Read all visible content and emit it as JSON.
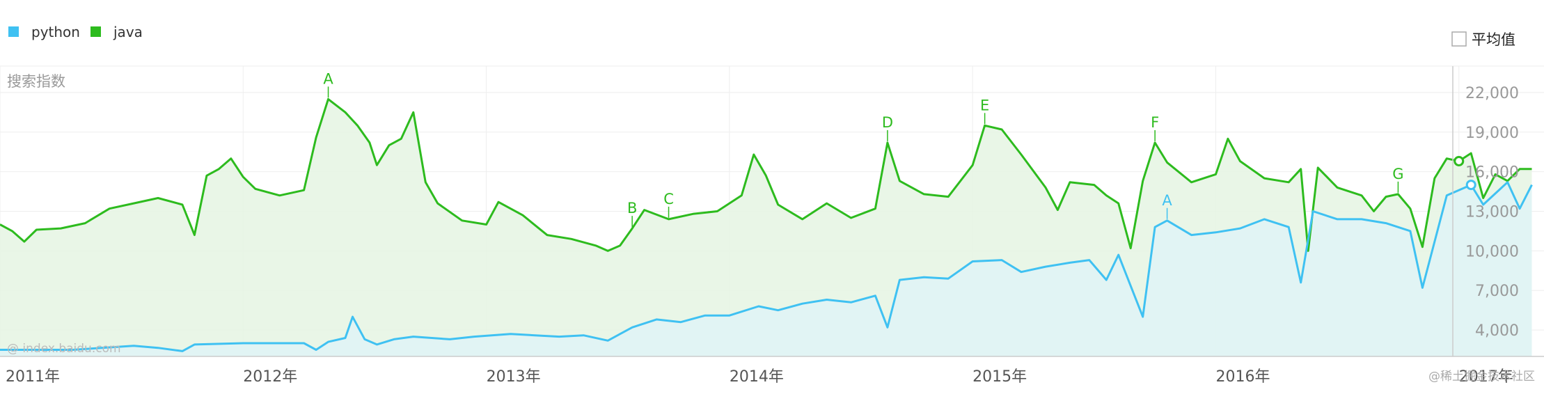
{
  "chart_data": {
    "type": "area",
    "ylabel": "搜索指数",
    "ylim": [
      2000,
      24000
    ],
    "y_ticks": [
      4000,
      7000,
      10000,
      13000,
      16000,
      19000,
      22000
    ],
    "x_ticks": [
      {
        "t": 2011.0,
        "label": "2011年"
      },
      {
        "t": 2012.0,
        "label": "2012年"
      },
      {
        "t": 2013.0,
        "label": "2013年"
      },
      {
        "t": 2014.0,
        "label": "2014年"
      },
      {
        "t": 2015.0,
        "label": "2015年"
      },
      {
        "t": 2016.0,
        "label": "2016年"
      },
      {
        "t": 2017.0,
        "label": "2017年"
      }
    ],
    "grid": true,
    "legend_position": "top-left",
    "series": [
      {
        "name": "python",
        "color": "#3fc1f2",
        "fill": "#dff3f6",
        "points": [
          [
            2011.0,
            2500
          ],
          [
            2011.3,
            2500
          ],
          [
            2011.55,
            2800
          ],
          [
            2011.65,
            2650
          ],
          [
            2011.75,
            2400
          ],
          [
            2011.8,
            2900
          ],
          [
            2012.0,
            3000
          ],
          [
            2012.25,
            3000
          ],
          [
            2012.3,
            2500
          ],
          [
            2012.35,
            3100
          ],
          [
            2012.42,
            3400
          ],
          [
            2012.45,
            5000
          ],
          [
            2012.5,
            3300
          ],
          [
            2012.55,
            2900
          ],
          [
            2012.62,
            3300
          ],
          [
            2012.7,
            3500
          ],
          [
            2012.85,
            3300
          ],
          [
            2012.95,
            3500
          ],
          [
            2013.1,
            3700
          ],
          [
            2013.2,
            3600
          ],
          [
            2013.3,
            3500
          ],
          [
            2013.4,
            3600
          ],
          [
            2013.5,
            3200
          ],
          [
            2013.6,
            4200
          ],
          [
            2013.7,
            4800
          ],
          [
            2013.8,
            4600
          ],
          [
            2013.9,
            5100
          ],
          [
            2014.0,
            5100
          ],
          [
            2014.12,
            5800
          ],
          [
            2014.2,
            5500
          ],
          [
            2014.3,
            6000
          ],
          [
            2014.4,
            6300
          ],
          [
            2014.5,
            6100
          ],
          [
            2014.6,
            6600
          ],
          [
            2014.65,
            4200
          ],
          [
            2014.7,
            7800
          ],
          [
            2014.8,
            8000
          ],
          [
            2014.9,
            7900
          ],
          [
            2015.0,
            9200
          ],
          [
            2015.12,
            9300
          ],
          [
            2015.2,
            8400
          ],
          [
            2015.3,
            8800
          ],
          [
            2015.4,
            9100
          ],
          [
            2015.48,
            9300
          ],
          [
            2015.55,
            7800
          ],
          [
            2015.6,
            9700
          ],
          [
            2015.7,
            5000
          ],
          [
            2015.75,
            11800
          ],
          [
            2015.8,
            12300
          ],
          [
            2015.9,
            11200
          ],
          [
            2016.0,
            11400
          ],
          [
            2016.1,
            11700
          ],
          [
            2016.2,
            12400
          ],
          [
            2016.3,
            11800
          ],
          [
            2016.35,
            7600
          ],
          [
            2016.4,
            13000
          ],
          [
            2016.5,
            12400
          ],
          [
            2016.6,
            12400
          ],
          [
            2016.7,
            12100
          ],
          [
            2016.8,
            11500
          ],
          [
            2016.85,
            7200
          ],
          [
            2016.95,
            14200
          ],
          [
            2017.05,
            15000
          ],
          [
            2017.1,
            13500
          ],
          [
            2017.2,
            15200
          ],
          [
            2017.25,
            13200
          ],
          [
            2017.3,
            15000
          ]
        ]
      },
      {
        "name": "java",
        "color": "#2dbb1e",
        "fill": "#e5f5e3",
        "points": [
          [
            2011.0,
            12000
          ],
          [
            2011.05,
            11500
          ],
          [
            2011.1,
            10700
          ],
          [
            2011.15,
            11600
          ],
          [
            2011.25,
            11700
          ],
          [
            2011.35,
            12100
          ],
          [
            2011.45,
            13200
          ],
          [
            2011.55,
            13600
          ],
          [
            2011.65,
            14000
          ],
          [
            2011.75,
            13500
          ],
          [
            2011.8,
            11200
          ],
          [
            2011.85,
            15700
          ],
          [
            2011.9,
            16200
          ],
          [
            2011.95,
            17000
          ],
          [
            2012.0,
            15600
          ],
          [
            2012.05,
            14700
          ],
          [
            2012.15,
            14200
          ],
          [
            2012.25,
            14600
          ],
          [
            2012.3,
            18600
          ],
          [
            2012.35,
            21500
          ],
          [
            2012.42,
            20500
          ],
          [
            2012.47,
            19500
          ],
          [
            2012.52,
            18200
          ],
          [
            2012.55,
            16500
          ],
          [
            2012.6,
            18000
          ],
          [
            2012.65,
            18500
          ],
          [
            2012.7,
            20500
          ],
          [
            2012.75,
            15200
          ],
          [
            2012.8,
            13600
          ],
          [
            2012.9,
            12300
          ],
          [
            2013.0,
            12000
          ],
          [
            2013.05,
            13700
          ],
          [
            2013.15,
            12700
          ],
          [
            2013.25,
            11200
          ],
          [
            2013.35,
            10900
          ],
          [
            2013.45,
            10400
          ],
          [
            2013.5,
            10000
          ],
          [
            2013.55,
            10400
          ],
          [
            2013.6,
            11700
          ],
          [
            2013.65,
            13100
          ],
          [
            2013.75,
            12400
          ],
          [
            2013.85,
            12800
          ],
          [
            2013.95,
            13000
          ],
          [
            2014.05,
            14200
          ],
          [
            2014.1,
            17300
          ],
          [
            2014.15,
            15700
          ],
          [
            2014.2,
            13500
          ],
          [
            2014.3,
            12400
          ],
          [
            2014.4,
            13600
          ],
          [
            2014.5,
            12500
          ],
          [
            2014.6,
            13200
          ],
          [
            2014.65,
            18200
          ],
          [
            2014.7,
            15300
          ],
          [
            2014.8,
            14300
          ],
          [
            2014.9,
            14100
          ],
          [
            2015.0,
            16500
          ],
          [
            2015.05,
            19500
          ],
          [
            2015.12,
            19200
          ],
          [
            2015.2,
            17300
          ],
          [
            2015.3,
            14800
          ],
          [
            2015.35,
            13100
          ],
          [
            2015.4,
            15200
          ],
          [
            2015.5,
            15000
          ],
          [
            2015.55,
            14200
          ],
          [
            2015.6,
            13600
          ],
          [
            2015.65,
            10200
          ],
          [
            2015.7,
            15300
          ],
          [
            2015.75,
            18200
          ],
          [
            2015.8,
            16700
          ],
          [
            2015.9,
            15200
          ],
          [
            2016.0,
            15800
          ],
          [
            2016.05,
            18500
          ],
          [
            2016.1,
            16800
          ],
          [
            2016.2,
            15500
          ],
          [
            2016.3,
            15200
          ],
          [
            2016.35,
            16200
          ],
          [
            2016.38,
            10000
          ],
          [
            2016.42,
            16300
          ],
          [
            2016.5,
            14800
          ],
          [
            2016.6,
            14200
          ],
          [
            2016.65,
            13000
          ],
          [
            2016.7,
            14100
          ],
          [
            2016.75,
            14300
          ],
          [
            2016.8,
            13200
          ],
          [
            2016.85,
            10300
          ],
          [
            2016.9,
            15500
          ],
          [
            2016.95,
            17000
          ],
          [
            2017.0,
            16800
          ],
          [
            2017.05,
            17400
          ],
          [
            2017.1,
            14000
          ],
          [
            2017.15,
            15800
          ],
          [
            2017.2,
            15300
          ],
          [
            2017.25,
            16200
          ],
          [
            2017.3,
            16200
          ]
        ]
      }
    ],
    "annotations": [
      {
        "series": "java",
        "label": "A",
        "t": 2012.35
      },
      {
        "series": "java",
        "label": "B",
        "t": 2013.6
      },
      {
        "series": "java",
        "label": "C",
        "t": 2013.72
      },
      {
        "series": "java",
        "label": "D",
        "t": 2014.65
      },
      {
        "series": "java",
        "label": "E",
        "t": 2015.05
      },
      {
        "series": "java",
        "label": "F",
        "t": 2015.75
      },
      {
        "series": "java",
        "label": "G",
        "t": 2016.75
      },
      {
        "series": "python",
        "label": "A",
        "t": 2015.8
      }
    ]
  },
  "legend": {
    "items": [
      {
        "label": "python",
        "color": "#3fc1f2"
      },
      {
        "label": "java",
        "color": "#2dbb1e"
      }
    ]
  },
  "average_toggle": {
    "label": "平均值",
    "checked": false
  },
  "watermark": "@ index.baidu.com",
  "credit": "@稀土掘金技术社区"
}
